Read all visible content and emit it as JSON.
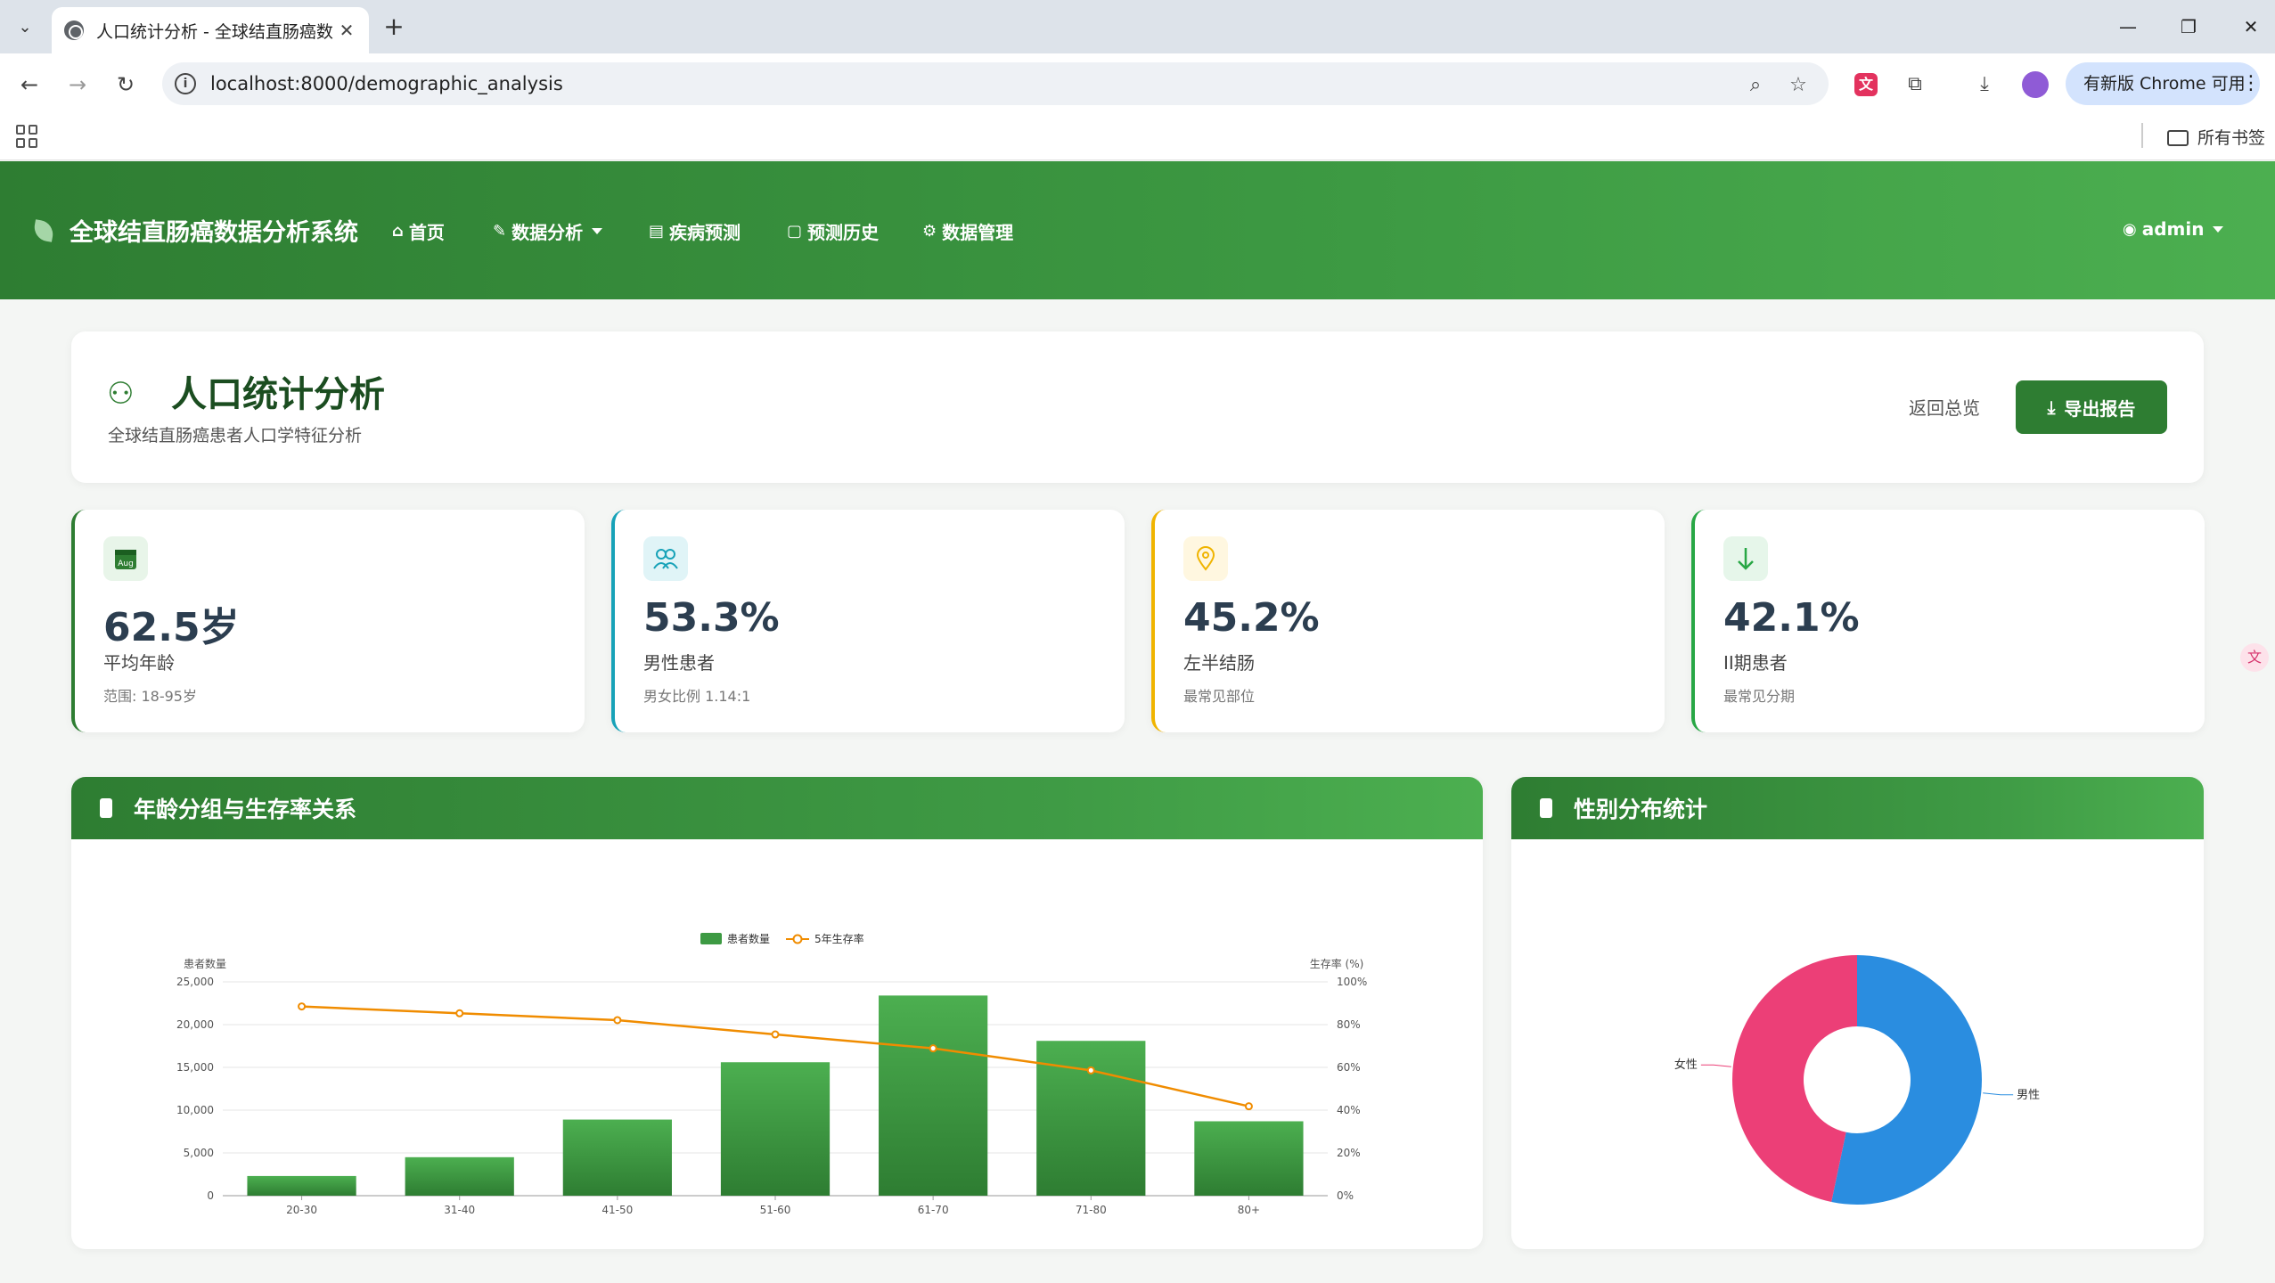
{
  "browser": {
    "tab_title": "人口统计分析 - 全球结直肠癌数",
    "url": "localhost:8000/demographic_analysis",
    "update_label": "有新版 Chrome 可用",
    "bookmarks_folder": "所有书签"
  },
  "navbar": {
    "brand": "全球结直肠癌数据分析系统",
    "items": [
      {
        "label": "首页",
        "icon": "home-icon"
      },
      {
        "label": "数据分析",
        "icon": "edit-icon"
      },
      {
        "label": "疾病预测",
        "icon": "cards-icon"
      },
      {
        "label": "预测历史",
        "icon": "history-icon"
      },
      {
        "label": "数据管理",
        "icon": "gear-icon"
      }
    ],
    "user": "admin"
  },
  "header": {
    "title": "人口统计分析",
    "subtitle": "全球结直肠癌患者人口学特征分析",
    "back_label": "返回总览",
    "export_label": "导出报告"
  },
  "stats": [
    {
      "value": "62.5岁",
      "label": "平均年龄",
      "note": "范围: 18-95岁",
      "icon": "calendar-icon",
      "accent": "#2e7d32",
      "icon_bg": "#e8f5e9"
    },
    {
      "value": "53.3%",
      "label": "男性患者",
      "note": "男女比例 1.14:1",
      "icon": "users-icon",
      "accent": "#17a2b8",
      "icon_bg": "#e0f4f7"
    },
    {
      "value": "45.2%",
      "label": "左半结肠",
      "note": "最常见部位",
      "icon": "location-pin-icon",
      "accent": "#f0b400",
      "icon_bg": "#fff7e0"
    },
    {
      "value": "42.1%",
      "label": "II期患者",
      "note": "最常见分期",
      "icon": "arrow-down-icon",
      "accent": "#28a745",
      "icon_bg": "#e6f6ea"
    }
  ],
  "age_panel": {
    "title": "年龄分组与生存率关系"
  },
  "gender_panel": {
    "title": "性别分布统计"
  },
  "chart_data": [
    {
      "type": "bar",
      "title": "年龄分组与生存率关系",
      "categories": [
        "20-30",
        "31-40",
        "41-50",
        "51-60",
        "61-70",
        "71-80",
        "80+"
      ],
      "series": [
        {
          "name": "患者数量",
          "type": "bar",
          "axis": "left",
          "values": [
            2300,
            4500,
            8900,
            15600,
            23400,
            18100,
            8700
          ]
        },
        {
          "name": "5年生存率",
          "type": "line",
          "axis": "right",
          "values": [
            88.5,
            85.3,
            82.1,
            75.4,
            68.9,
            58.6,
            41.8
          ]
        }
      ],
      "ylabel_left": "患者数量",
      "ylabel_right": "生存率 (%)",
      "ylim_left": [
        0,
        25000
      ],
      "yticks_left": [
        "0",
        "5,000",
        "10,000",
        "15,000",
        "20,000",
        "25,000"
      ],
      "ylim_right": [
        0,
        100
      ],
      "yticks_right": [
        "0%",
        "20%",
        "40%",
        "60%",
        "80%",
        "100%"
      ],
      "legend": "top-center",
      "grid": true,
      "colors": {
        "bar": "#3d9a43",
        "line": "#f08c00"
      }
    },
    {
      "type": "pie",
      "title": "性别分布统计",
      "donut": true,
      "slices": [
        {
          "label": "男性",
          "value": 53.3,
          "color": "#2a8de0"
        },
        {
          "label": "女性",
          "value": 46.7,
          "color": "#ec3f77"
        }
      ]
    }
  ]
}
